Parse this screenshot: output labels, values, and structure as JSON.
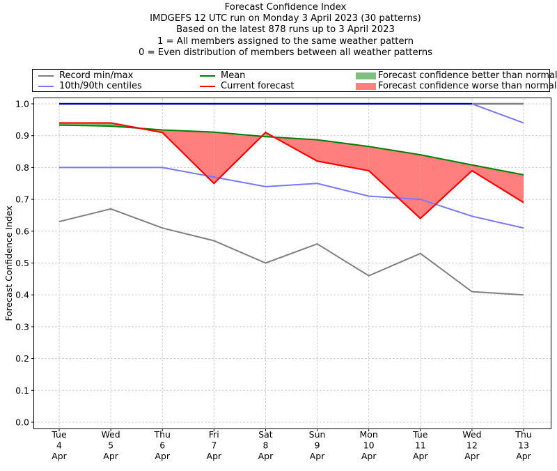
{
  "chart_data": {
    "type": "line",
    "title_lines": [
      "Forecast Confidence Index",
      "IMDGEFS 12 UTC run on Monday 3 April 2023 (30 patterns)",
      "Based on the latest 878 runs up to 3 April 2023",
      "1 = All members assigned to the same weather pattern",
      "0 = Even distribution of members between all weather patterns"
    ],
    "ylabel": "Forecast Confidence Index",
    "xlabel": "",
    "ylim": [
      0.0,
      1.0
    ],
    "yticks": [
      "0.0",
      "0.1",
      "0.2",
      "0.3",
      "0.4",
      "0.5",
      "0.6",
      "0.7",
      "0.8",
      "0.9",
      "1.0"
    ],
    "x_tick_labels": [
      [
        "Tue",
        "4",
        "Apr"
      ],
      [
        "Wed",
        "5",
        "Apr"
      ],
      [
        "Thu",
        "6",
        "Apr"
      ],
      [
        "Fri",
        "7",
        "Apr"
      ],
      [
        "Sat",
        "8",
        "Apr"
      ],
      [
        "Sun",
        "9",
        "Apr"
      ],
      [
        "Mon",
        "10",
        "Apr"
      ],
      [
        "Tue",
        "11",
        "Apr"
      ],
      [
        "Wed",
        "12",
        "Apr"
      ],
      [
        "Thu",
        "13",
        "Apr"
      ]
    ],
    "grid": true,
    "legend_position": "top",
    "legend": [
      {
        "label": "Record min/max",
        "kind": "line",
        "color": "#7f7f7f"
      },
      {
        "label": "10th/90th centiles",
        "kind": "line",
        "color": "#7777ff"
      },
      {
        "label": "Mean",
        "kind": "line",
        "color": "#008000"
      },
      {
        "label": "Current forecast",
        "kind": "line",
        "color": "#ff0000"
      },
      {
        "label": "Forecast confidence better than normal",
        "kind": "patch",
        "color": "#7fbf7f"
      },
      {
        "label": "Forecast confidence worse than normal",
        "kind": "patch",
        "color": "#ff7f7f"
      }
    ],
    "series": [
      {
        "name": "Record max",
        "color": "#7f7f7f",
        "values": [
          1.0,
          1.0,
          1.0,
          1.0,
          1.0,
          1.0,
          1.0,
          1.0,
          1.0,
          1.0
        ]
      },
      {
        "name": "Record min",
        "color": "#7f7f7f",
        "values": [
          0.63,
          0.67,
          0.61,
          0.57,
          0.5,
          0.56,
          0.46,
          0.53,
          0.41,
          0.4
        ]
      },
      {
        "name": "90th centile",
        "color": "#7777ff",
        "values": [
          1.0,
          1.0,
          1.0,
          1.0,
          1.0,
          1.0,
          1.0,
          1.0,
          1.0,
          0.94
        ]
      },
      {
        "name": "10th centile",
        "color": "#7777ff",
        "values": [
          0.8,
          0.8,
          0.8,
          0.77,
          0.74,
          0.75,
          0.71,
          0.7,
          0.647,
          0.61
        ]
      },
      {
        "name": "Mean",
        "color": "#008000",
        "values": [
          0.933,
          0.93,
          0.918,
          0.911,
          0.897,
          0.887,
          0.866,
          0.84,
          0.808,
          0.777
        ]
      },
      {
        "name": "Current forecast",
        "color": "#ff0000",
        "values": [
          0.94,
          0.94,
          0.91,
          0.75,
          0.91,
          0.82,
          0.79,
          0.64,
          0.79,
          0.69
        ]
      }
    ],
    "fill_colors": {
      "better": "#7fbf7f",
      "worse": "#ff7f7f",
      "top_line": "#0000bb"
    }
  }
}
